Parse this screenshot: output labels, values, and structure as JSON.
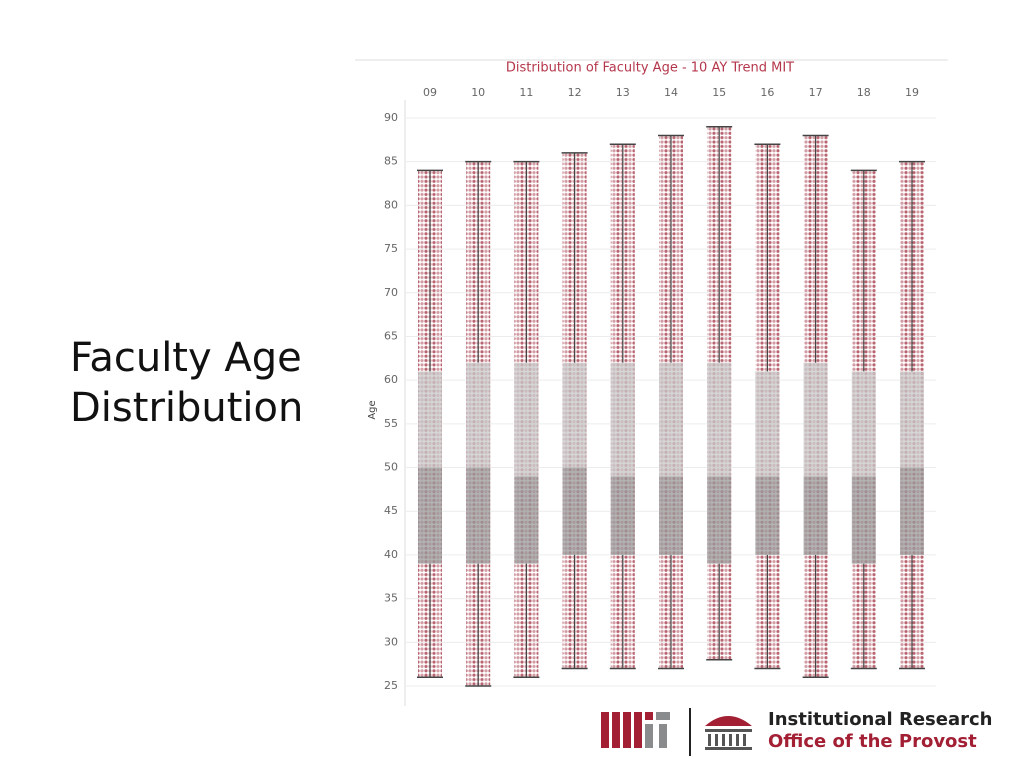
{
  "slide": {
    "heading": [
      "Faculty Age",
      "Distribution"
    ],
    "logo": {
      "line1": "Institutional Research",
      "line2": "Office of the Provost"
    }
  },
  "chart_data": {
    "type": "box",
    "title": "Distribution of Faculty Age - 10 AY Trend MIT",
    "y_label": "Age",
    "categories": [
      "09",
      "10",
      "11",
      "12",
      "13",
      "14",
      "15",
      "16",
      "17",
      "18",
      "19"
    ],
    "boxes": [
      {
        "min": 26,
        "q1": 39,
        "median": 50,
        "q3": 61,
        "max": 84
      },
      {
        "min": 25,
        "q1": 39,
        "median": 50,
        "q3": 62,
        "max": 85
      },
      {
        "min": 26,
        "q1": 39,
        "median": 49,
        "q3": 62,
        "max": 85
      },
      {
        "min": 27,
        "q1": 40,
        "median": 50,
        "q3": 62,
        "max": 86
      },
      {
        "min": 27,
        "q1": 40,
        "median": 49,
        "q3": 62,
        "max": 87
      },
      {
        "min": 27,
        "q1": 40,
        "median": 49,
        "q3": 62,
        "max": 88
      },
      {
        "min": 28,
        "q1": 39,
        "median": 49,
        "q3": 62,
        "max": 89
      },
      {
        "min": 27,
        "q1": 40,
        "median": 49,
        "q3": 61,
        "max": 87
      },
      {
        "min": 26,
        "q1": 40,
        "median": 49,
        "q3": 62,
        "max": 88
      },
      {
        "min": 27,
        "q1": 39,
        "median": 49,
        "q3": 61,
        "max": 84
      },
      {
        "min": 27,
        "q1": 40,
        "median": 50,
        "q3": 61,
        "max": 85
      }
    ],
    "dot_color": "#9b2335",
    "upper_box_color": "#c8c8c8",
    "lower_box_color": "#9a9a9a",
    "ylim": [
      23,
      92
    ],
    "yticks": [
      25,
      30,
      35,
      40,
      45,
      50,
      55,
      60,
      65,
      70,
      75,
      80,
      85,
      90
    ],
    "grid": true
  }
}
